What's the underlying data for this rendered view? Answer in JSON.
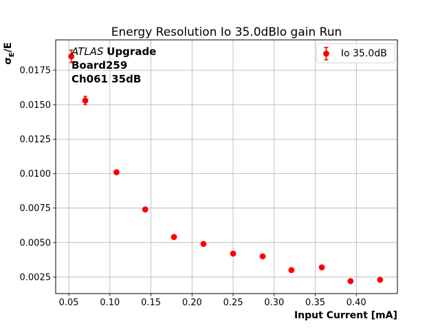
{
  "figure": {
    "title": "Energy Resolution Io 35.0dBlo gain Run"
  },
  "axes": {
    "x_label": "Input Current [mA]",
    "y_label": {
      "sigma": "σ",
      "subscript": "E",
      "suffix": "/E"
    },
    "x_tick_labels": [
      "0.05",
      "0.10",
      "0.15",
      "0.20",
      "0.25",
      "0.30",
      "0.35",
      "0.40"
    ],
    "y_tick_labels": [
      "0.0025",
      "0.0050",
      "0.0075",
      "0.0100",
      "0.0125",
      "0.0150",
      "0.0175"
    ]
  },
  "legend": {
    "label": "Io 35.0dB"
  },
  "annotation": {
    "experiment": "ATLAS",
    "experiment_suffix": "Upgrade",
    "board": "Board259",
    "channel": "Ch061 35dB"
  },
  "colors": {
    "series": "#ff0000",
    "grid": "#b0b0b0",
    "spine": "#000000",
    "text": "#000000",
    "legend_border": "#d5d5d5"
  },
  "chart_data": {
    "type": "scatter",
    "title": "Energy Resolution Io 35.0dBlo gain Run",
    "xlabel": "Input Current [mA]",
    "ylabel": "σE/E",
    "xlim": [
      0.034,
      0.45
    ],
    "ylim": [
      0.0013,
      0.0197
    ],
    "x_ticks": [
      0.05,
      0.1,
      0.15,
      0.2,
      0.25,
      0.3,
      0.35,
      0.4
    ],
    "y_ticks": [
      0.0025,
      0.005,
      0.0075,
      0.01,
      0.0125,
      0.015,
      0.0175
    ],
    "grid": true,
    "legend_position": "upper right",
    "series": [
      {
        "name": "Io 35.0dB",
        "color": "#ff0000",
        "marker": "o",
        "x": [
          0.053,
          0.07,
          0.108,
          0.143,
          0.178,
          0.214,
          0.25,
          0.286,
          0.321,
          0.358,
          0.393,
          0.429
        ],
        "y": [
          0.0185,
          0.0153,
          0.0101,
          0.0074,
          0.0054,
          0.0049,
          0.0042,
          0.004,
          0.003,
          0.0032,
          0.0022,
          0.0023
        ],
        "yerr": [
          0.00045,
          0.0003,
          0.00012,
          0.0001,
          0.0001,
          0.0001,
          0.0001,
          0.0001,
          0.0001,
          0.0001,
          0.0001,
          0.0001
        ]
      }
    ]
  }
}
